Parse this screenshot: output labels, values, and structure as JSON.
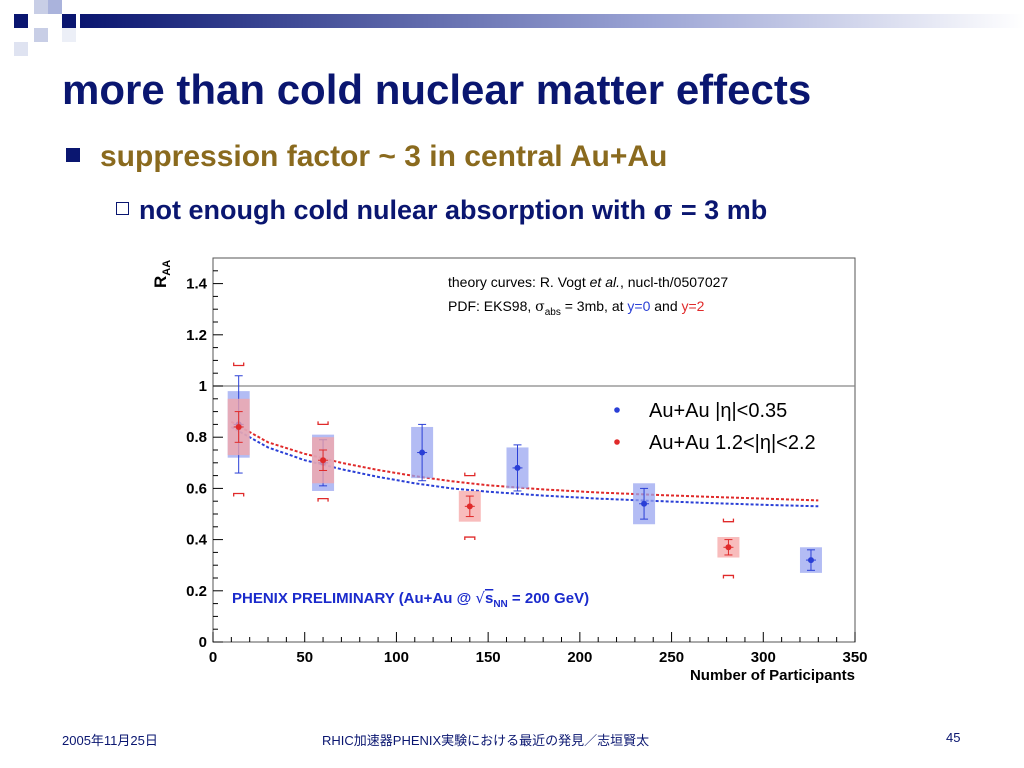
{
  "slide": {
    "title": "more than cold nuclear matter effects",
    "bullet1": "suppression factor ~ 3 in central Au+Au",
    "bullet2_prefix": "not enough cold nulear absorption with ",
    "bullet2_sigma": "σ",
    "bullet2_suffix": " = 3 mb"
  },
  "footer": {
    "date": "2005年11月25日",
    "center": "RHIC加速器PHENIX実験における最近の発見／志垣賢太",
    "page": "45"
  },
  "colors": {
    "title": "#0a1670",
    "bullet1": "#8a6a1e",
    "series_mid": "#2a3fd6",
    "series_fwd": "#e02a2a",
    "band_mid": "#9aa6f0",
    "band_fwd": "#f6a6a6",
    "preliminary": "#1a2acc"
  },
  "chart_data": {
    "type": "scatter",
    "ylabel_main": "R",
    "ylabel_sub": "AA",
    "xlabel": "Number of Participants",
    "xlim": [
      0,
      350
    ],
    "ylim": [
      0,
      1.5
    ],
    "xticks": [
      "0",
      "50",
      "100",
      "150",
      "200",
      "250",
      "300",
      "350"
    ],
    "yticks": [
      "0",
      "0.2",
      "0.4",
      "0.6",
      "0.8",
      "1",
      "1.2",
      "1.4"
    ],
    "reference_line": 1,
    "note_line1_a": "theory curves: R. Vogt ",
    "note_line1_b": "et al.",
    "note_line1_c": ", nucl-th/0507027",
    "note_line2_a": "PDF: EKS98, ",
    "note_line2_sigma": "σ",
    "note_line2_sub": "abs",
    "note_line2_b": " = 3mb, at ",
    "note_line2_y0": "y=0",
    "note_line2_and": " and ",
    "note_line2_y2": "y=2",
    "legend": [
      "Au+Au |η|<0.35",
      "Au+Au 1.2<|η|<2.2"
    ],
    "preliminary_a": "PHENIX PRELIMINARY (Au+Au @ ",
    "preliminary_s": "s",
    "preliminary_sub": "NN",
    "preliminary_b": " = 200 GeV)",
    "series": [
      {
        "x": [
          14,
          60,
          114,
          166,
          235,
          326
        ],
        "y": [
          0.85,
          0.7,
          0.74,
          0.68,
          0.54,
          0.32
        ],
        "stat": [
          0.19,
          0.09,
          0.11,
          0.09,
          0.06,
          0.04
        ],
        "band": [
          0.13,
          0.11,
          0.1,
          0.08,
          0.08,
          0.05
        ],
        "bracket_hi": [],
        "bracket_lo": []
      },
      {
        "x": [
          14,
          60,
          140,
          281
        ],
        "y": [
          0.84,
          0.71,
          0.53,
          0.37
        ],
        "stat": [
          0.06,
          0.04,
          0.04,
          0.03
        ],
        "band": [
          0.11,
          0.09,
          0.06,
          0.04
        ],
        "bracket_hi": [
          1.08,
          0.85,
          0.65,
          0.47
        ],
        "bracket_lo": [
          0.58,
          0.56,
          0.41,
          0.26
        ]
      }
    ],
    "curves": [
      {
        "x": [
          10,
          30,
          50,
          70,
          90,
          110,
          130,
          150,
          180,
          210,
          240,
          270,
          300,
          330
        ],
        "y": [
          0.84,
          0.76,
          0.71,
          0.675,
          0.645,
          0.62,
          0.6,
          0.587,
          0.572,
          0.56,
          0.551,
          0.543,
          0.536,
          0.53
        ]
      },
      {
        "x": [
          10,
          30,
          50,
          70,
          90,
          110,
          130,
          150,
          180,
          210,
          240,
          270,
          300,
          330
        ],
        "y": [
          0.86,
          0.78,
          0.735,
          0.7,
          0.672,
          0.648,
          0.628,
          0.612,
          0.596,
          0.584,
          0.575,
          0.567,
          0.56,
          0.553
        ]
      }
    ]
  }
}
